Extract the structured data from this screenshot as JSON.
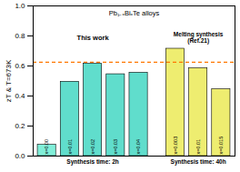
{
  "chart_data": {
    "type": "bar",
    "title": "Pb₁₋ₓBiₓTe alloys",
    "ylabel": "zT & T=673K",
    "ylim": [
      0.0,
      1.0
    ],
    "yticks": [
      {
        "value": 0.0,
        "label": "0.0"
      },
      0.2,
      0.4,
      0.6,
      0.8,
      {
        "value": 1.0,
        "label": "1.0"
      }
    ],
    "groups": [
      {
        "name": "This work",
        "sublabel": "Synthesis time: 2h",
        "categories": [
          "x=0.00",
          "x=0.01",
          "x=0.02",
          "x=0.03",
          "x=0.04"
        ],
        "values": [
          0.075,
          0.495,
          0.615,
          0.545,
          0.555
        ],
        "colors": [
          "#80EED8",
          "#60DDCC",
          "#60DDCC",
          "#60DDCC",
          "#60DDCC"
        ]
      },
      {
        "name": "Melting synthesis\n(Ref.21)",
        "sublabel": "Synthesis time: 40h",
        "categories": [
          "x=0.003",
          "x=0.01",
          "x=0.015"
        ],
        "values": [
          0.715,
          0.585,
          0.445
        ],
        "colors": [
          "#EEED70",
          "#EEED70",
          "#EEED70"
        ]
      }
    ],
    "annotations": [
      {
        "type": "hline",
        "y": 0.625,
        "color": "#FF7700",
        "line_style": "dashed"
      }
    ]
  }
}
